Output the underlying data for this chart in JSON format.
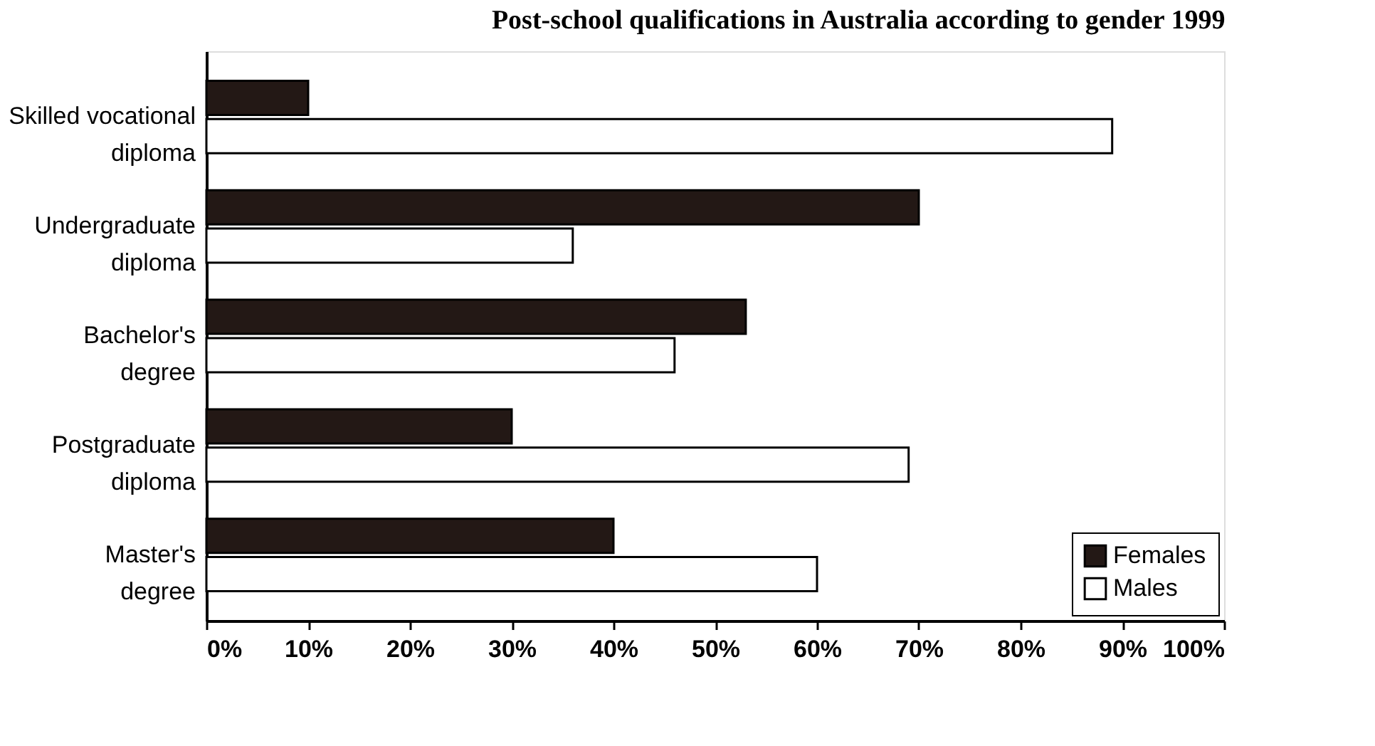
{
  "chart_data": {
    "type": "bar",
    "orientation": "horizontal",
    "title": "Post-school qualifications in Australia according to gender 1999",
    "categories": [
      "Skilled vocational diploma",
      "Undergraduate diploma",
      "Bachelor's degree",
      "Postgraduate diploma",
      "Master's degree"
    ],
    "series": [
      {
        "name": "Females",
        "color": "#231815",
        "values": [
          10,
          70,
          53,
          30,
          40
        ]
      },
      {
        "name": "Males",
        "color": "#ffffff",
        "values": [
          89,
          36,
          46,
          69,
          60
        ]
      }
    ],
    "xlim": [
      0,
      100
    ],
    "xticks": [
      {
        "value": 0,
        "label": "0%"
      },
      {
        "value": 10,
        "label": "10%"
      },
      {
        "value": 20,
        "label": "20%"
      },
      {
        "value": 30,
        "label": "30%"
      },
      {
        "value": 40,
        "label": "40%"
      },
      {
        "value": 50,
        "label": "50%"
      },
      {
        "value": 60,
        "label": "60%"
      },
      {
        "value": 70,
        "label": "70%"
      },
      {
        "value": 80,
        "label": "80%"
      },
      {
        "value": 90,
        "label": "90%"
      },
      {
        "value": 100,
        "label": "100%"
      }
    ],
    "grid": false,
    "legend": "bottom right"
  }
}
